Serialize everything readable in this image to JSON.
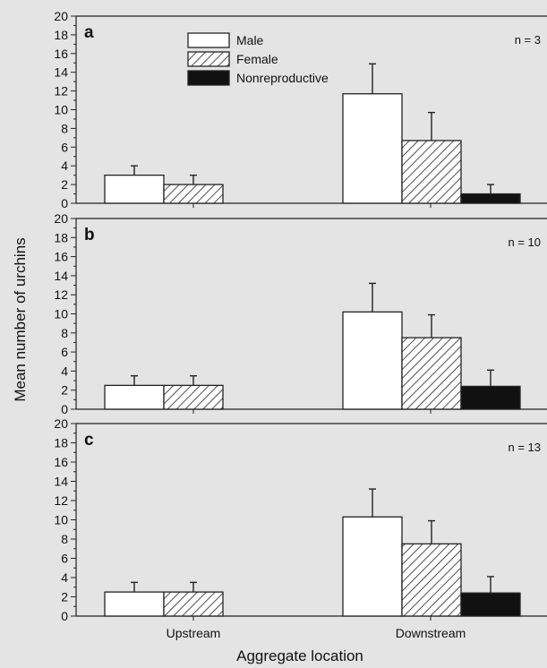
{
  "chart_data": {
    "type": "bar",
    "xlabel": "Aggregate location",
    "ylabel": "Mean number of urchins",
    "categories": [
      "Upstream",
      "Downstream"
    ],
    "ylim": [
      0,
      20
    ],
    "yticks": [
      0,
      2,
      4,
      6,
      8,
      10,
      12,
      14,
      16,
      18,
      20
    ],
    "legend": {
      "placement": "top-left of panel a",
      "entries": [
        {
          "name": "Male",
          "fill": "white"
        },
        {
          "name": "Female",
          "fill": "diagonal-hatch"
        },
        {
          "name": "Nonreproductive",
          "fill": "black"
        }
      ]
    },
    "panels": [
      {
        "letter": "a",
        "n_label": "n = 3",
        "series": [
          {
            "name": "Male",
            "values": [
              3.0,
              11.7
            ],
            "errors": [
              1.0,
              3.2
            ]
          },
          {
            "name": "Female",
            "values": [
              2.0,
              6.7
            ],
            "errors": [
              1.0,
              3.0
            ]
          },
          {
            "name": "Nonreproductive",
            "values": [
              0,
              1.0
            ],
            "errors": [
              0,
              1.0
            ]
          }
        ]
      },
      {
        "letter": "b",
        "n_label": "n = 10",
        "series": [
          {
            "name": "Male",
            "values": [
              2.5,
              10.2
            ],
            "errors": [
              1.0,
              3.0
            ]
          },
          {
            "name": "Female",
            "values": [
              2.5,
              7.5
            ],
            "errors": [
              1.0,
              2.4
            ]
          },
          {
            "name": "Nonreproductive",
            "values": [
              0,
              2.4
            ],
            "errors": [
              0,
              1.7
            ]
          }
        ]
      },
      {
        "letter": "c",
        "n_label": "n = 13",
        "series": [
          {
            "name": "Male",
            "values": [
              2.5,
              10.3
            ],
            "errors": [
              1.0,
              2.9
            ]
          },
          {
            "name": "Female",
            "values": [
              2.5,
              7.5
            ],
            "errors": [
              1.0,
              2.4
            ]
          },
          {
            "name": "Nonreproductive",
            "values": [
              0,
              2.4
            ],
            "errors": [
              0,
              1.7
            ]
          }
        ]
      }
    ]
  }
}
